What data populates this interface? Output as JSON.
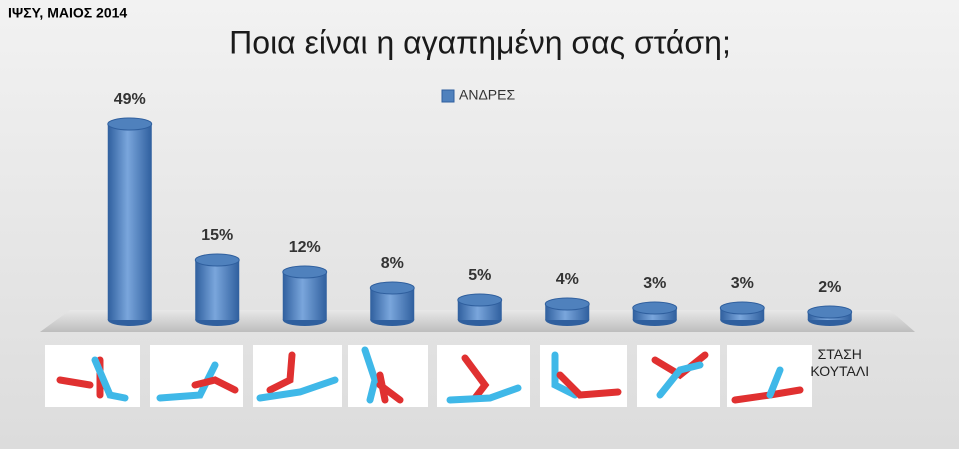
{
  "chart_data": {
    "type": "bar",
    "source": "ΙΨΣΥ, ΜΑΙΟΣ 2014",
    "title": "Ποια είναι η αγαπημένη σας στάση;",
    "categories": [
      null,
      null,
      null,
      null,
      null,
      null,
      null,
      null,
      "ΣΤΑΣΗ ΚΟΥΤΑΛΙ"
    ],
    "series": [
      {
        "name": "ΑΝΔΡΕΣ",
        "color": "#4f81bd",
        "values": [
          49,
          15,
          12,
          8,
          5,
          4,
          3,
          3,
          2
        ],
        "value_labels": [
          "49%",
          "15%",
          "12%",
          "8%",
          "5%",
          "4%",
          "3%",
          "3%",
          "2%"
        ]
      }
    ],
    "ylim": [
      0,
      55
    ],
    "legend": "top"
  }
}
